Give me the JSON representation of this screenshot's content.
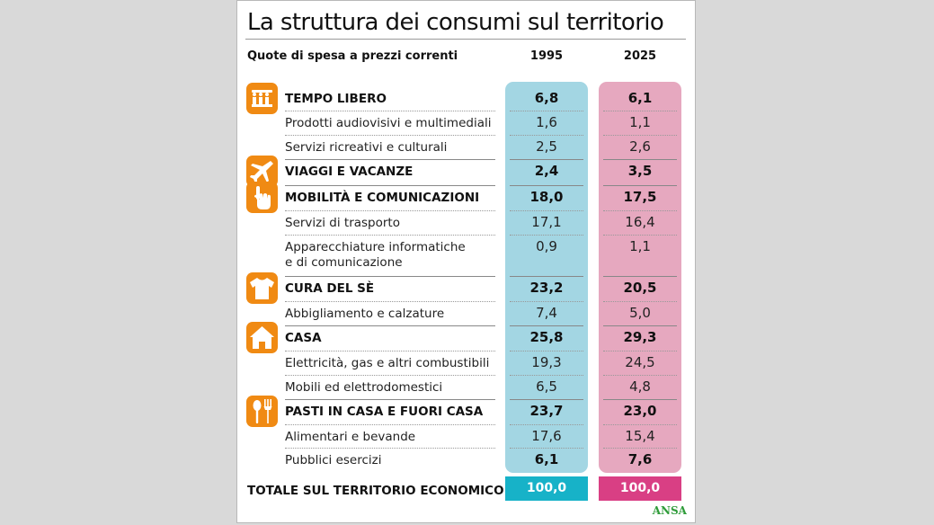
{
  "title": "La struttura dei consumi sul territorio",
  "subtitle": "Quote di spesa a prezzi correnti",
  "brand": "ANSA",
  "colors": {
    "col1995_bg": "#a3d6e3",
    "col2025_bg": "#e6a8bf",
    "total1995": "#17b2c8",
    "total2025": "#d93f84",
    "icon": "#f08a13"
  },
  "chart_data": {
    "type": "table",
    "columns": [
      "1995",
      "2025"
    ],
    "rows": [
      {
        "label": "TEMPO LIBERO",
        "main": true,
        "icon": "leisure-icon",
        "v1995": "6,8",
        "v2025": "6,1"
      },
      {
        "label": "Prodotti audiovisivi e multimediali",
        "main": false,
        "v1995": "1,6",
        "v2025": "1,1"
      },
      {
        "label": "Servizi ricreativi e culturali",
        "main": false,
        "v1995": "2,5",
        "v2025": "2,6"
      },
      {
        "label": "VIAGGI E VACANZE",
        "main": true,
        "icon": "airplane-icon",
        "v1995": "2,4",
        "v2025": "3,5"
      },
      {
        "label": "MOBILITÀ E COMUNICAZIONI",
        "main": true,
        "icon": "hand-pointer-icon",
        "v1995": "18,0",
        "v2025": "17,5"
      },
      {
        "label": "Servizi di trasporto",
        "main": false,
        "v1995": "17,1",
        "v2025": "16,4"
      },
      {
        "label": "Apparecchiature informatiche",
        "label2": "e di comunicazione",
        "main": false,
        "v1995": "0,9",
        "v2025": "1,1"
      },
      {
        "label": "CURA DEL SÈ",
        "main": true,
        "icon": "tshirt-icon",
        "v1995": "23,2",
        "v2025": "20,5"
      },
      {
        "label": "Abbigliamento e calzature",
        "main": false,
        "v1995": "7,4",
        "v2025": "5,0"
      },
      {
        "label": "CASA",
        "main": true,
        "icon": "house-icon",
        "v1995": "25,8",
        "v2025": "29,3"
      },
      {
        "label": "Elettricità, gas e altri combustibili",
        "main": false,
        "v1995": "19,3",
        "v2025": "24,5"
      },
      {
        "label": "Mobili ed elettrodomestici",
        "main": false,
        "v1995": "6,5",
        "v2025": "4,8"
      },
      {
        "label": "PASTI IN CASA E FUORI CASA",
        "main": true,
        "icon": "fork-spoon-icon",
        "v1995": "23,7",
        "v2025": "23,0"
      },
      {
        "label": "Alimentari e bevande",
        "main": false,
        "v1995": "17,6",
        "v2025": "15,4"
      },
      {
        "label": "Pubblici esercizi",
        "main": false,
        "v1995": "6,1",
        "v2025": "7,6",
        "bold_values": true
      }
    ],
    "total": {
      "label": "TOTALE SUL TERRITORIO ECONOMICO",
      "v1995": "100,0",
      "v2025": "100,0"
    }
  }
}
